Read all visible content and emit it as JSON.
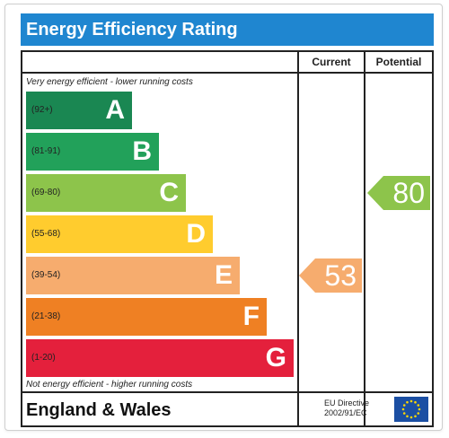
{
  "title": "Energy Efficiency Rating",
  "columns": {
    "current": "Current",
    "potential": "Potential"
  },
  "top_note": "Very energy efficient - lower running costs",
  "bottom_note": "Not energy efficient - higher running costs",
  "bands": [
    {
      "range": "(92+)",
      "letter": "A",
      "color": "#1a8752"
    },
    {
      "range": "(81-91)",
      "letter": "B",
      "color": "#22a15a"
    },
    {
      "range": "(69-80)",
      "letter": "C",
      "color": "#8dc44b"
    },
    {
      "range": "(55-68)",
      "letter": "D",
      "color": "#ffcc2e"
    },
    {
      "range": "(39-54)",
      "letter": "E",
      "color": "#f6ac6e"
    },
    {
      "range": "(21-38)",
      "letter": "F",
      "color": "#ef8023"
    },
    {
      "range": "(1-20)",
      "letter": "G",
      "color": "#e4203c"
    }
  ],
  "current_rating": {
    "value": "53",
    "band": "E",
    "color": "#f6ac6e"
  },
  "potential_rating": {
    "value": "80",
    "band": "C",
    "color": "#8dc44b"
  },
  "region": "England & Wales",
  "directive": {
    "line1": "EU Directive",
    "line2": "2002/91/EC"
  },
  "flag_icon": "eu-flag-icon"
}
